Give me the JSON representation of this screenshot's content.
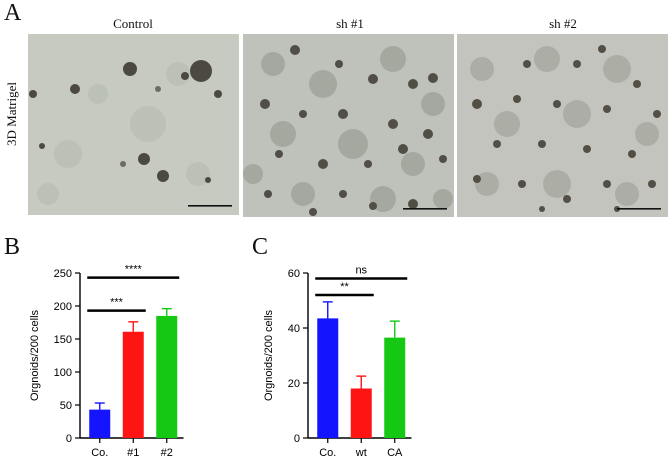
{
  "figure": {
    "panels": {
      "a": "A",
      "b": "B",
      "c": "C"
    },
    "micrographs": {
      "row_label": "3D Matrigel",
      "columns": [
        {
          "title": "Control",
          "tone": "#c7cbc2"
        },
        {
          "title": "sh #1",
          "tone": "#bcbfb7"
        },
        {
          "title": "sh #2",
          "tone": "#c1c3bc"
        }
      ]
    }
  },
  "chart_data": [
    {
      "type": "bar",
      "panel": "B",
      "ylabel": "Orgnoids/200 cells",
      "xlabel": "",
      "ylim": [
        0,
        250
      ],
      "yticks": [
        0,
        50,
        100,
        150,
        200,
        250
      ],
      "categories": [
        "Co.",
        "#1",
        "#2"
      ],
      "values": [
        43,
        161,
        185
      ],
      "errors": [
        10,
        15,
        11
      ],
      "colors": [
        "#1414ff",
        "#ff1414",
        "#14c814"
      ],
      "significance": [
        {
          "from": 0,
          "to": 1,
          "label": "***",
          "y": 193
        },
        {
          "from": 0,
          "to": 2,
          "label": "****",
          "y": 243
        }
      ]
    },
    {
      "type": "bar",
      "panel": "C",
      "ylabel": "Orgnoids/200 cells",
      "xlabel": "",
      "ylim": [
        0,
        60
      ],
      "yticks": [
        0,
        20,
        40,
        60
      ],
      "categories": [
        "Co.",
        "wt",
        "CA"
      ],
      "values": [
        43.5,
        18,
        36.5
      ],
      "errors": [
        6,
        4.5,
        6
      ],
      "colors": [
        "#1414ff",
        "#ff1414",
        "#14c814"
      ],
      "significance": [
        {
          "from": 0,
          "to": 1,
          "label": "**",
          "y": 52
        },
        {
          "from": 0,
          "to": 2,
          "label": "ns",
          "y": 58
        }
      ]
    }
  ]
}
